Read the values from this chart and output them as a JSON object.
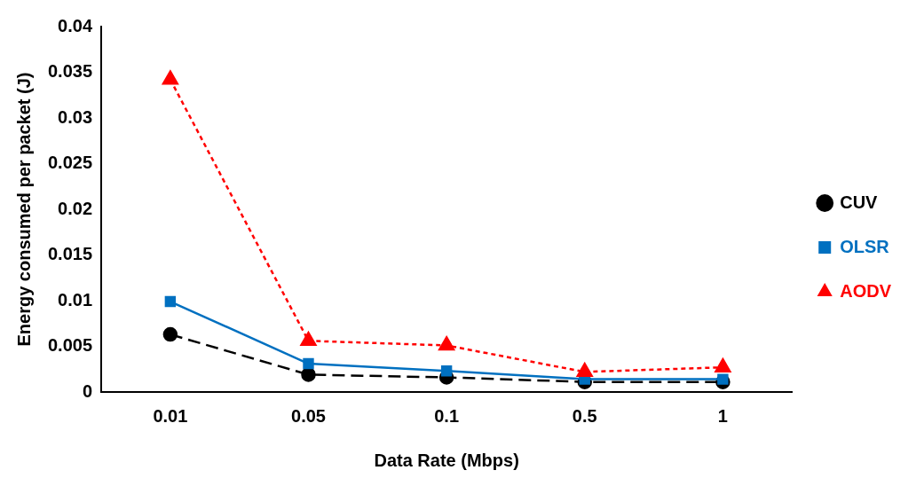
{
  "chart_data": {
    "type": "line",
    "xlabel": "Data Rate (Mbps)",
    "ylabel": "Energy consumed per packet (J)",
    "categories": [
      "0.01",
      "0.05",
      "0.1",
      "0.5",
      "1"
    ],
    "series": [
      {
        "name": "CUV",
        "color": "#000000",
        "values": [
          0.0063,
          0.0019,
          0.0016,
          0.0011,
          0.0011
        ],
        "marker": "circle",
        "line_style": "dashed"
      },
      {
        "name": "OLSR",
        "color": "#0070c0",
        "values": [
          0.0099,
          0.0031,
          0.0023,
          0.0014,
          0.0014
        ],
        "marker": "square",
        "line_style": "solid"
      },
      {
        "name": "AODV",
        "color": "#ff0000",
        "values": [
          0.0342,
          0.0056,
          0.0051,
          0.0022,
          0.0027
        ],
        "marker": "triangle",
        "line_style": "dotted"
      }
    ],
    "ylim": [
      0,
      0.04
    ],
    "yticks": [
      0,
      0.005,
      0.01,
      0.015,
      0.02,
      0.025,
      0.03,
      0.035,
      0.04
    ],
    "grid": false,
    "legend": "right"
  }
}
